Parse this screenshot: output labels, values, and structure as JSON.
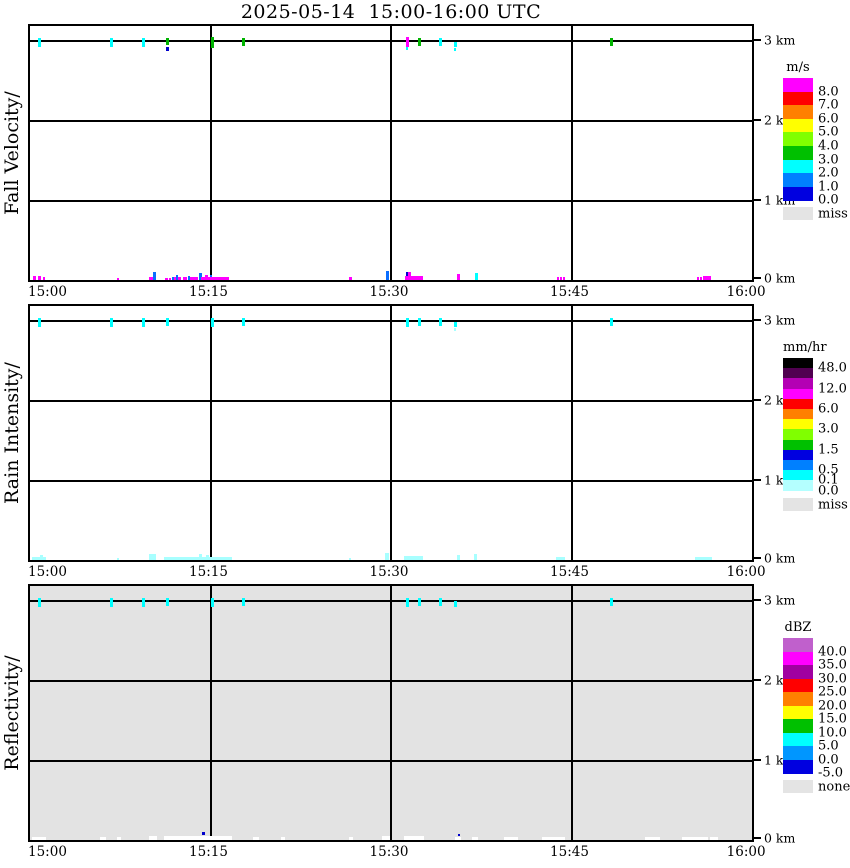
{
  "figure_title": "2025-05-14  15:00-16:00 UTC",
  "colors": {
    "magenta": "#FF00FF",
    "cyan": "#00FFFF",
    "palecyan": "#A8FFFF",
    "green": "#00B400",
    "blue": "#0000CC",
    "dodger": "#0A6EFF",
    "white": "#FFFFFF",
    "panel3_bg": "#E3E3E3",
    "miss_gray": "#E4E4E4",
    "line": "#000000"
  },
  "mark_format_3km": "[x_px, w_px, h_px, y_px_from_panel_top, color_key] — echo traces on the 3 km range line",
  "mark_format_surface": "[x_px, w_px, h_px, lift_px_above_axis, color_key] — echo traces at 0 km axis",
  "chart_data": [
    {
      "type": "heatmap",
      "panel": "fall-velocity",
      "title": "Fall Velocity/",
      "units": "m/s",
      "x_axis": {
        "start": "15:00",
        "end": "16:00",
        "ticks": [
          "15:00",
          "15:15",
          "15:30",
          "15:45",
          "16:00"
        ]
      },
      "y_axis": {
        "labels": [
          "3 km",
          "2 km",
          "1 km",
          "0 km"
        ],
        "range_km": [
          0,
          3
        ]
      },
      "echo_times_3km": [
        "15:01",
        "15:07",
        "15:09",
        "15:11",
        "15:15",
        "15:18",
        "15:31",
        "15:32",
        "15:34",
        "15:35",
        "15:48"
      ],
      "marks_3km": [
        [
          8,
          3,
          9,
          12,
          "cyan"
        ],
        [
          80,
          3,
          9,
          12,
          "cyan"
        ],
        [
          112,
          3,
          9,
          12,
          "cyan"
        ],
        [
          136,
          3,
          7,
          12,
          "green"
        ],
        [
          136,
          3,
          4,
          21,
          "blue"
        ],
        [
          181,
          3,
          11,
          11,
          "green"
        ],
        [
          212,
          3,
          8,
          12,
          "green"
        ],
        [
          376,
          3,
          10,
          11,
          "magenta"
        ],
        [
          376,
          2,
          3,
          21,
          "cyan"
        ],
        [
          388,
          3,
          8,
          12,
          "green"
        ],
        [
          409,
          3,
          8,
          12,
          "cyan"
        ],
        [
          424,
          3,
          5,
          16,
          "cyan"
        ],
        [
          424,
          2,
          3,
          22,
          "cyan"
        ],
        [
          580,
          3,
          8,
          12,
          "green"
        ]
      ],
      "marks_surface": [
        [
          3,
          3,
          4,
          0,
          "magenta"
        ],
        [
          8,
          3,
          4,
          0,
          "magenta"
        ],
        [
          13,
          2,
          3,
          0,
          "magenta"
        ],
        [
          87,
          2,
          2,
          0,
          "magenta"
        ],
        [
          119,
          5,
          3,
          0,
          "magenta"
        ],
        [
          123,
          3,
          8,
          0,
          "dodger"
        ],
        [
          135,
          3,
          2,
          0,
          "magenta"
        ],
        [
          139,
          2,
          2,
          0,
          "magenta"
        ],
        [
          142,
          2,
          3,
          0,
          "dodger"
        ],
        [
          144,
          7,
          3,
          0,
          "magenta"
        ],
        [
          146,
          2,
          5,
          0,
          "dodger"
        ],
        [
          153,
          4,
          3,
          0,
          "magenta"
        ],
        [
          158,
          2,
          4,
          0,
          "dodger"
        ],
        [
          160,
          8,
          3,
          0,
          "magenta"
        ],
        [
          169,
          3,
          7,
          0,
          "dodger"
        ],
        [
          171,
          28,
          3,
          0,
          "magenta"
        ],
        [
          175,
          3,
          5,
          0,
          "magenta"
        ],
        [
          180,
          2,
          2,
          3,
          "dodger"
        ],
        [
          319,
          3,
          3,
          0,
          "magenta"
        ],
        [
          356,
          3,
          9,
          0,
          "dodger"
        ],
        [
          375,
          18,
          4,
          0,
          "magenta"
        ],
        [
          376,
          2,
          4,
          4,
          "blue"
        ],
        [
          378,
          3,
          8,
          0,
          "magenta"
        ],
        [
          427,
          3,
          6,
          0,
          "magenta"
        ],
        [
          445,
          3,
          7,
          0,
          "cyan"
        ],
        [
          527,
          2,
          3,
          0,
          "magenta"
        ],
        [
          530,
          2,
          3,
          0,
          "magenta"
        ],
        [
          533,
          2,
          3,
          0,
          "magenta"
        ],
        [
          667,
          2,
          3,
          0,
          "magenta"
        ],
        [
          670,
          2,
          3,
          0,
          "magenta"
        ],
        [
          673,
          3,
          4,
          0,
          "magenta"
        ],
        [
          676,
          5,
          4,
          0,
          "magenta"
        ]
      ],
      "legend": {
        "title": "m/s",
        "band_h": 13.6,
        "colors": [
          "#FF00FF",
          "#FF0000",
          "#FF8000",
          "#FFFF00",
          "#80FF00",
          "#00C000",
          "#00FFFF",
          "#0080FF",
          "#0000E0"
        ],
        "labels": [
          [
            "8.0",
            1
          ],
          [
            "7.0",
            2
          ],
          [
            "6.0",
            3
          ],
          [
            "5.0",
            4
          ],
          [
            "4.0",
            5
          ],
          [
            "3.0",
            6
          ],
          [
            "2.0",
            7
          ],
          [
            "1.0",
            8
          ],
          [
            "0.0",
            9
          ]
        ],
        "miss": {
          "label": "miss"
        }
      }
    },
    {
      "type": "heatmap",
      "panel": "rain-intensity",
      "title": "Rain Intensity/",
      "units": "mm/hr",
      "x_axis": {
        "start": "15:00",
        "end": "16:00",
        "ticks": [
          "15:00",
          "15:15",
          "15:30",
          "15:45",
          "16:00"
        ]
      },
      "y_axis": {
        "labels": [
          "3 km",
          "2 km",
          "1 km",
          "0 km"
        ],
        "range_km": [
          0,
          3
        ]
      },
      "echo_times_3km": [
        "15:01",
        "15:07",
        "15:09",
        "15:11",
        "15:15",
        "15:18",
        "15:31",
        "15:32",
        "15:34",
        "15:35",
        "15:48"
      ],
      "marks_3km": [
        [
          8,
          3,
          9,
          12,
          "cyan"
        ],
        [
          80,
          3,
          9,
          12,
          "cyan"
        ],
        [
          112,
          3,
          9,
          12,
          "cyan"
        ],
        [
          136,
          3,
          8,
          12,
          "cyan"
        ],
        [
          181,
          3,
          9,
          12,
          "cyan"
        ],
        [
          212,
          3,
          8,
          12,
          "cyan"
        ],
        [
          376,
          3,
          9,
          12,
          "cyan"
        ],
        [
          388,
          3,
          8,
          12,
          "cyan"
        ],
        [
          409,
          3,
          8,
          12,
          "cyan"
        ],
        [
          424,
          3,
          5,
          16,
          "cyan"
        ],
        [
          424,
          2,
          3,
          22,
          "palecyan"
        ],
        [
          580,
          3,
          8,
          12,
          "cyan"
        ]
      ],
      "marks_surface": [
        [
          2,
          14,
          3,
          0,
          "palecyan"
        ],
        [
          10,
          3,
          5,
          0,
          "palecyan"
        ],
        [
          87,
          2,
          2,
          0,
          "palecyan"
        ],
        [
          119,
          7,
          6,
          0,
          "palecyan"
        ],
        [
          134,
          68,
          3,
          0,
          "palecyan"
        ],
        [
          169,
          3,
          6,
          0,
          "palecyan"
        ],
        [
          176,
          3,
          5,
          0,
          "palecyan"
        ],
        [
          319,
          2,
          2,
          0,
          "palecyan"
        ],
        [
          355,
          4,
          7,
          0,
          "palecyan"
        ],
        [
          374,
          19,
          4,
          0,
          "palecyan"
        ],
        [
          427,
          3,
          5,
          0,
          "palecyan"
        ],
        [
          444,
          3,
          6,
          0,
          "palecyan"
        ],
        [
          526,
          9,
          3,
          0,
          "palecyan"
        ],
        [
          665,
          17,
          3,
          0,
          "palecyan"
        ]
      ],
      "legend": {
        "title": "mm/hr",
        "band_h": 10.2,
        "colors": [
          "#000000",
          "#500050",
          "#B400B4",
          "#FF00FF",
          "#FF0000",
          "#FF8000",
          "#FFFF00",
          "#80FF00",
          "#00C000",
          "#0000E0",
          "#0080FF",
          "#00FFFF",
          "#B4FFFF"
        ],
        "labels": [
          [
            "48.0",
            1
          ],
          [
            "12.0",
            3
          ],
          [
            "6.0",
            5
          ],
          [
            "3.0",
            7
          ],
          [
            "1.5",
            9
          ],
          [
            "0.5",
            11
          ],
          [
            "0.1",
            12
          ],
          [
            "0.0",
            13
          ]
        ],
        "miss": {
          "label": "miss"
        }
      }
    },
    {
      "type": "heatmap",
      "panel": "reflectivity",
      "title": "Reflectivity/",
      "units": "dBZ",
      "x_axis": {
        "start": "15:00",
        "end": "16:00",
        "ticks": [
          "15:00",
          "15:15",
          "15:30",
          "15:45",
          "16:00"
        ]
      },
      "y_axis": {
        "labels": [
          "3 km",
          "2 km",
          "1 km",
          "0 km"
        ],
        "range_km": [
          0,
          3
        ]
      },
      "echo_times_3km": [
        "15:01",
        "15:07",
        "15:09",
        "15:11",
        "15:15",
        "15:18",
        "15:31",
        "15:32",
        "15:34",
        "15:35",
        "15:48"
      ],
      "marks_3km": [
        [
          8,
          3,
          9,
          12,
          "cyan"
        ],
        [
          80,
          3,
          9,
          12,
          "cyan"
        ],
        [
          112,
          3,
          9,
          12,
          "cyan"
        ],
        [
          136,
          3,
          8,
          12,
          "cyan"
        ],
        [
          181,
          3,
          9,
          12,
          "cyan"
        ],
        [
          212,
          3,
          8,
          12,
          "cyan"
        ],
        [
          376,
          3,
          9,
          12,
          "cyan"
        ],
        [
          388,
          3,
          8,
          12,
          "cyan"
        ],
        [
          409,
          3,
          8,
          12,
          "cyan"
        ],
        [
          424,
          3,
          6,
          15,
          "cyan"
        ],
        [
          580,
          3,
          8,
          12,
          "cyan"
        ]
      ],
      "marks_surface": [
        [
          2,
          14,
          3,
          0,
          "white"
        ],
        [
          70,
          6,
          3,
          0,
          "white"
        ],
        [
          87,
          4,
          3,
          0,
          "white"
        ],
        [
          119,
          8,
          4,
          0,
          "white"
        ],
        [
          134,
          68,
          4,
          0,
          "white"
        ],
        [
          172,
          3,
          3,
          5,
          "blue"
        ],
        [
          223,
          6,
          3,
          0,
          "white"
        ],
        [
          251,
          4,
          3,
          0,
          "white"
        ],
        [
          319,
          4,
          3,
          0,
          "white"
        ],
        [
          352,
          8,
          4,
          0,
          "white"
        ],
        [
          374,
          20,
          4,
          0,
          "white"
        ],
        [
          425,
          6,
          3,
          0,
          "white"
        ],
        [
          428,
          2,
          2,
          4,
          "blue"
        ],
        [
          442,
          6,
          3,
          0,
          "white"
        ],
        [
          474,
          14,
          3,
          0,
          "white"
        ],
        [
          512,
          18,
          3,
          0,
          "white"
        ],
        [
          525,
          10,
          3,
          0,
          "white"
        ],
        [
          615,
          15,
          3,
          0,
          "white"
        ],
        [
          652,
          26,
          3,
          0,
          "white"
        ],
        [
          680,
          8,
          3,
          0,
          "white"
        ]
      ],
      "legend": {
        "title": "dBZ",
        "band_h": 13.5,
        "colors": [
          "#C060CC",
          "#FF00FF",
          "#A000A0",
          "#FF0000",
          "#FF8000",
          "#FFFF00",
          "#00C000",
          "#00FFFF",
          "#0096FF",
          "#0000E0"
        ],
        "labels": [
          [
            "40.0",
            1
          ],
          [
            "35.0",
            2
          ],
          [
            "30.0",
            3
          ],
          [
            "25.0",
            4
          ],
          [
            "20.0",
            5
          ],
          [
            "15.0",
            6
          ],
          [
            "10.0",
            7
          ],
          [
            "5.0",
            8
          ],
          [
            "0.0",
            9
          ],
          [
            "-5.0",
            10
          ]
        ],
        "miss": {
          "label": "none"
        }
      }
    }
  ]
}
